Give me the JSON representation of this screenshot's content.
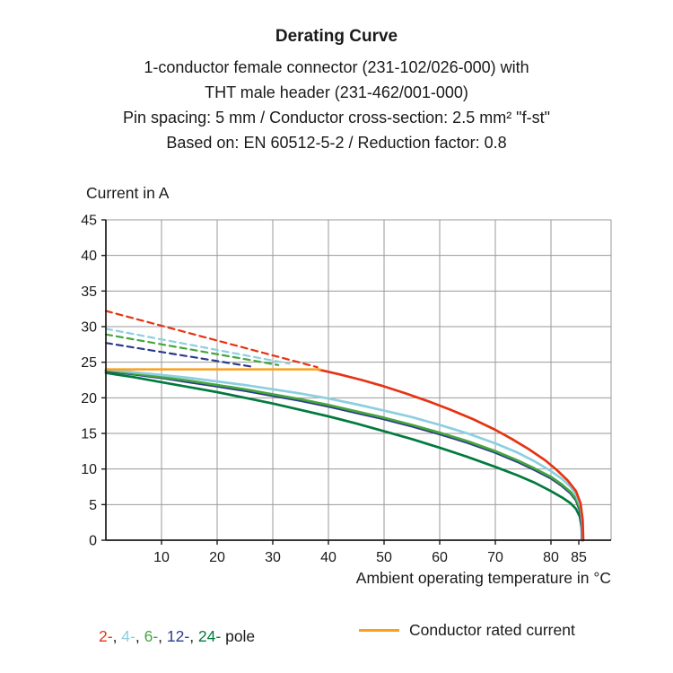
{
  "header": {
    "title": "Derating Curve",
    "subtitle_lines": [
      "1-conductor female connector (231-102/026-000) with",
      "THT male header (231-462/001-000)",
      "Pin spacing: 5 mm / Conductor cross-section: 2.5 mm² \"f-st\"",
      "Based on: EN 60512-5-2 / Reduction factor: 0.8"
    ]
  },
  "chart_data": {
    "type": "line",
    "title": "Derating Curve",
    "ylabel": "Current in A",
    "xlabel": "Ambient operating temperature in °C",
    "xlim": [
      0,
      91
    ],
    "ylim": [
      0,
      45
    ],
    "x_ticks": [
      10,
      20,
      30,
      40,
      50,
      60,
      70,
      80,
      85
    ],
    "y_ticks": [
      0,
      5,
      10,
      15,
      20,
      25,
      30,
      35,
      40,
      45
    ],
    "grid": true,
    "grid_color": "#9a9a9a",
    "axis_color": "#1a1a1a",
    "series": [
      {
        "name": "2-pole unreduced limit",
        "color": "#e63312",
        "dashed": true,
        "width": 2.2,
        "points": [
          [
            0,
            32.2
          ],
          [
            38,
            24.3
          ]
        ]
      },
      {
        "name": "4-pole unreduced limit",
        "color": "#8ccfe0",
        "dashed": true,
        "width": 2.2,
        "points": [
          [
            0,
            29.7
          ],
          [
            33,
            24.8
          ]
        ]
      },
      {
        "name": "6-pole unreduced limit",
        "color": "#44a63d",
        "dashed": true,
        "width": 2.2,
        "points": [
          [
            0,
            28.9
          ],
          [
            31,
            24.6
          ]
        ]
      },
      {
        "name": "12-pole unreduced limit",
        "color": "#2d3a8c",
        "dashed": true,
        "width": 2.2,
        "points": [
          [
            0,
            27.7
          ],
          [
            26,
            24.4
          ]
        ]
      },
      {
        "name": "24-pole derating curve",
        "color": "#007a3d",
        "dashed": false,
        "width": 2.7,
        "points": [
          [
            0,
            23.5
          ],
          [
            5,
            22.9
          ],
          [
            10,
            22.2
          ],
          [
            15,
            21.5
          ],
          [
            20,
            20.8
          ],
          [
            25,
            20.0
          ],
          [
            30,
            19.2
          ],
          [
            35,
            18.3
          ],
          [
            40,
            17.4
          ],
          [
            45,
            16.4
          ],
          [
            50,
            15.3
          ],
          [
            55,
            14.2
          ],
          [
            60,
            13.0
          ],
          [
            65,
            11.7
          ],
          [
            70,
            10.3
          ],
          [
            74,
            9.1
          ],
          [
            77,
            8.1
          ],
          [
            80,
            6.9
          ],
          [
            82,
            6.0
          ],
          [
            83.5,
            5.2
          ],
          [
            84.5,
            4.4
          ],
          [
            85.2,
            3.3
          ],
          [
            85.5,
            1.8
          ],
          [
            85.6,
            0
          ]
        ]
      },
      {
        "name": "12-pole derating curve",
        "color": "#2d3a8c",
        "dashed": false,
        "width": 2.7,
        "points": [
          [
            0,
            23.8
          ],
          [
            5,
            23.3
          ],
          [
            10,
            22.8
          ],
          [
            15,
            22.2
          ],
          [
            20,
            21.6
          ],
          [
            25,
            21.0
          ],
          [
            30,
            20.3
          ],
          [
            35,
            19.6
          ],
          [
            40,
            18.8
          ],
          [
            45,
            17.9
          ],
          [
            50,
            17.0
          ],
          [
            55,
            16.0
          ],
          [
            60,
            14.9
          ],
          [
            65,
            13.7
          ],
          [
            70,
            12.3
          ],
          [
            74,
            11.0
          ],
          [
            77,
            9.9
          ],
          [
            80,
            8.7
          ],
          [
            82,
            7.6
          ],
          [
            83.5,
            6.6
          ],
          [
            84.5,
            5.6
          ],
          [
            85.2,
            4.2
          ],
          [
            85.5,
            2.3
          ],
          [
            85.6,
            0
          ]
        ]
      },
      {
        "name": "6-pole derating curve",
        "color": "#44a63d",
        "dashed": false,
        "width": 2.7,
        "points": [
          [
            0,
            23.9
          ],
          [
            5,
            23.4
          ],
          [
            10,
            22.9
          ],
          [
            15,
            22.4
          ],
          [
            20,
            21.8
          ],
          [
            25,
            21.2
          ],
          [
            30,
            20.5
          ],
          [
            35,
            19.8
          ],
          [
            40,
            19.0
          ],
          [
            45,
            18.1
          ],
          [
            50,
            17.2
          ],
          [
            55,
            16.2
          ],
          [
            60,
            15.1
          ],
          [
            65,
            13.9
          ],
          [
            70,
            12.5
          ],
          [
            74,
            11.2
          ],
          [
            77,
            10.1
          ],
          [
            80,
            8.9
          ],
          [
            82,
            7.8
          ],
          [
            83.5,
            6.8
          ],
          [
            84.5,
            5.8
          ],
          [
            85.3,
            4.3
          ],
          [
            85.6,
            2.4
          ],
          [
            85.7,
            0
          ]
        ]
      },
      {
        "name": "4-pole derating curve",
        "color": "#8ccfe0",
        "dashed": false,
        "width": 2.7,
        "points": [
          [
            0,
            24.0
          ],
          [
            5,
            23.6
          ],
          [
            10,
            23.2
          ],
          [
            15,
            22.8
          ],
          [
            20,
            22.3
          ],
          [
            25,
            21.8
          ],
          [
            30,
            21.2
          ],
          [
            35,
            20.6
          ],
          [
            40,
            19.9
          ],
          [
            45,
            19.1
          ],
          [
            50,
            18.2
          ],
          [
            55,
            17.3
          ],
          [
            60,
            16.2
          ],
          [
            65,
            15.0
          ],
          [
            70,
            13.6
          ],
          [
            74,
            12.3
          ],
          [
            77,
            11.1
          ],
          [
            80,
            9.7
          ],
          [
            82,
            8.6
          ],
          [
            83.5,
            7.5
          ],
          [
            84.5,
            6.4
          ],
          [
            85.3,
            4.8
          ],
          [
            85.6,
            2.7
          ],
          [
            85.7,
            0
          ]
        ]
      },
      {
        "name": "2-pole derating curve",
        "color": "#e63312",
        "dashed": false,
        "width": 2.7,
        "points": [
          [
            38,
            24.0
          ],
          [
            42,
            23.3
          ],
          [
            46,
            22.5
          ],
          [
            50,
            21.6
          ],
          [
            54,
            20.6
          ],
          [
            58,
            19.5
          ],
          [
            62,
            18.3
          ],
          [
            66,
            17.0
          ],
          [
            70,
            15.5
          ],
          [
            73,
            14.2
          ],
          [
            76,
            12.8
          ],
          [
            79,
            11.2
          ],
          [
            81,
            9.9
          ],
          [
            83,
            8.4
          ],
          [
            84.5,
            6.9
          ],
          [
            85.3,
            5.2
          ],
          [
            85.7,
            2.9
          ],
          [
            85.8,
            0
          ]
        ]
      },
      {
        "name": "Conductor rated current",
        "color": "#f9a11b",
        "dashed": false,
        "width": 2.5,
        "points": [
          [
            0,
            24
          ],
          [
            38.5,
            24
          ]
        ]
      }
    ]
  },
  "legend": {
    "pole_items": [
      {
        "label": "2-",
        "color": "#e63312"
      },
      {
        "label": "4-",
        "color": "#8ccfe0"
      },
      {
        "label": "6-",
        "color": "#44a63d"
      },
      {
        "label": "12-",
        "color": "#2d3a8c"
      },
      {
        "label": "24-",
        "color": "#007a3d"
      }
    ],
    "pole_separator": ", ",
    "pole_suffix": " pole",
    "rated_label": "Conductor rated current",
    "rated_color": "#f9a11b"
  }
}
